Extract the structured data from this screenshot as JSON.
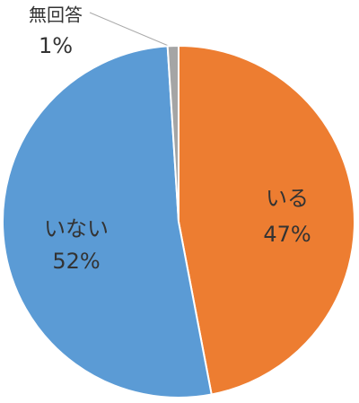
{
  "chart_data": {
    "type": "pie",
    "categories": [
      "いる",
      "いない",
      "無回答"
    ],
    "values": [
      47,
      52,
      1
    ],
    "value_labels": [
      "47%",
      "52%",
      "1%"
    ],
    "colors": [
      "#ED7D31",
      "#5B9BD5",
      "#A5A5A5"
    ]
  }
}
